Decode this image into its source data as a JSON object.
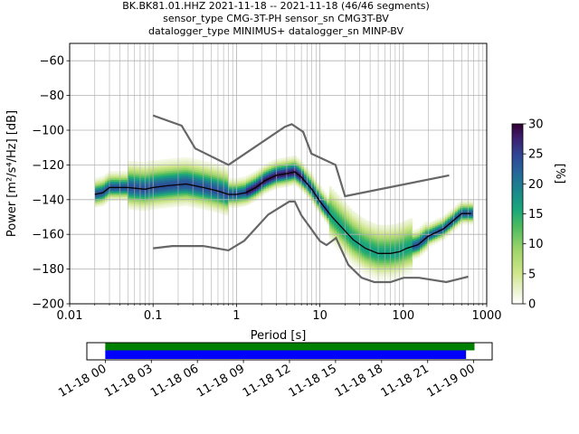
{
  "title_lines": [
    "BK.BK81.01.HHZ   2021-11-18 -- 2021-11-18  (46/46 segments)",
    "sensor_type CMG-3T-PH sensor_sn CMG3T-BV",
    "datalogger_type MINIMUS+ datalogger_sn MINP-BV"
  ],
  "chart_data": {
    "type": "heatmap",
    "xlabel": "Period [s]",
    "ylabel": "Power [m²/s⁴/Hz] [dB]",
    "xscale": "log",
    "xlim": [
      0.01,
      1000
    ],
    "ylim": [
      -200,
      -50
    ],
    "x_ticks": [
      "0.01",
      "0.1",
      "1",
      "10",
      "100",
      "1000"
    ],
    "x_tick_values": [
      0.01,
      0.1,
      1,
      10,
      100,
      1000
    ],
    "y_ticks": [
      "−60",
      "−80",
      "−100",
      "−120",
      "−140",
      "−160",
      "−180",
      "−200"
    ],
    "y_tick_values": [
      -60,
      -80,
      -100,
      -120,
      -140,
      -160,
      -180,
      -200
    ],
    "grid": true,
    "colorbar": {
      "label": "[%]",
      "range": [
        0,
        30
      ],
      "ticks": [
        "0",
        "5",
        "10",
        "15",
        "20",
        "25",
        "30"
      ],
      "tick_values": [
        0,
        5,
        10,
        15,
        20,
        25,
        30
      ],
      "colormap": "pqlx"
    },
    "mode_curve": {
      "color": "#000000",
      "points": [
        [
          0.02,
          -137
        ],
        [
          0.025,
          -136
        ],
        [
          0.03,
          -133
        ],
        [
          0.05,
          -133
        ],
        [
          0.08,
          -134
        ],
        [
          0.1,
          -133
        ],
        [
          0.15,
          -132
        ],
        [
          0.25,
          -131
        ],
        [
          0.4,
          -133
        ],
        [
          0.6,
          -135
        ],
        [
          0.8,
          -137
        ],
        [
          1.0,
          -137
        ],
        [
          1.3,
          -136
        ],
        [
          1.7,
          -133
        ],
        [
          2.2,
          -129
        ],
        [
          3.0,
          -126
        ],
        [
          4.0,
          -125
        ],
        [
          5.0,
          -124
        ],
        [
          6.0,
          -127
        ],
        [
          8.0,
          -134
        ],
        [
          10,
          -141
        ],
        [
          14,
          -150
        ],
        [
          20,
          -158
        ],
        [
          25,
          -163
        ],
        [
          35,
          -168
        ],
        [
          50,
          -171
        ],
        [
          70,
          -171
        ],
        [
          90,
          -170
        ],
        [
          110,
          -168
        ],
        [
          150,
          -166
        ],
        [
          200,
          -161
        ],
        [
          300,
          -157
        ],
        [
          400,
          -152
        ],
        [
          500,
          -148
        ],
        [
          650,
          -148
        ]
      ]
    },
    "noise_models": {
      "color": "#666666",
      "high": [
        [
          0.1,
          -91.5
        ],
        [
          0.22,
          -97.4
        ],
        [
          0.32,
          -110.5
        ],
        [
          0.8,
          -120
        ],
        [
          3.8,
          -98
        ],
        [
          4.6,
          -96.5
        ],
        [
          6.3,
          -101
        ],
        [
          7.9,
          -113.5
        ],
        [
          15.4,
          -120
        ],
        [
          20,
          -138
        ],
        [
          354.8,
          -126
        ],
        [
          10000,
          -80
        ]
      ],
      "low": [
        [
          0.1,
          -168
        ],
        [
          0.17,
          -166.7
        ],
        [
          0.4,
          -166.7
        ],
        [
          0.8,
          -169.2
        ],
        [
          1.24,
          -163.7
        ],
        [
          2.4,
          -148.6
        ],
        [
          4.3,
          -141.1
        ],
        [
          5.0,
          -141.1
        ],
        [
          6.0,
          -149
        ],
        [
          10,
          -163.8
        ],
        [
          12,
          -166.2
        ],
        [
          15.6,
          -162.1
        ],
        [
          21.9,
          -177.5
        ],
        [
          31.6,
          -185
        ],
        [
          45,
          -187.5
        ],
        [
          70,
          -187.5
        ],
        [
          101,
          -185
        ],
        [
          154,
          -185
        ],
        [
          328,
          -187.5
        ],
        [
          600,
          -184.4
        ],
        [
          10000,
          -151.5
        ]
      ]
    },
    "coverage": {
      "tick_labels": [
        "11-18 00",
        "11-18 03",
        "11-18 06",
        "11-18 09",
        "11-18 12",
        "11-18 15",
        "11-18 18",
        "11-18 21",
        "11-19 00"
      ],
      "tick_hours": [
        0,
        3,
        6,
        9,
        12,
        15,
        18,
        21,
        24
      ],
      "range_hours": [
        -1.2,
        25.2
      ],
      "data_bar": {
        "start_hour": 0,
        "end_hour": 24.05,
        "color": "#008000"
      },
      "psd_bar": {
        "start_hour": 0,
        "end_hour": 23.5,
        "color": "#0000ff"
      }
    }
  }
}
